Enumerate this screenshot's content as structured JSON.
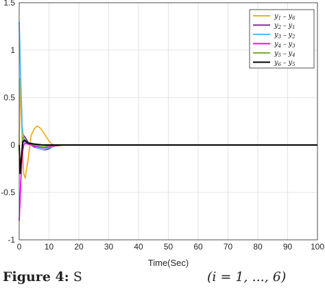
{
  "chart_data": {
    "type": "line",
    "xlabel": "Time(Sec)",
    "ylabel": "",
    "xlim": [
      0,
      100
    ],
    "ylim": [
      -1,
      1.5
    ],
    "xticks": [
      0,
      10,
      20,
      30,
      40,
      50,
      60,
      70,
      80,
      90,
      100
    ],
    "yticks": [
      -1,
      -0.5,
      0,
      0.5,
      1,
      1.5
    ],
    "grid": true,
    "legend_position": "top-right",
    "series": [
      {
        "name": "y1 − y6",
        "color": "#EDB120",
        "points": [
          [
            0,
            0
          ],
          [
            0.3,
            0.7
          ],
          [
            0.6,
            0.4
          ],
          [
            1,
            0.05
          ],
          [
            1.5,
            -0.3
          ],
          [
            2,
            -0.35
          ],
          [
            3,
            -0.15
          ],
          [
            4,
            0.1
          ],
          [
            5,
            0.17
          ],
          [
            6,
            0.2
          ],
          [
            7,
            0.18
          ],
          [
            8,
            0.14
          ],
          [
            9,
            0.09
          ],
          [
            10,
            0.04
          ],
          [
            11,
            0.01
          ],
          [
            12,
            -0.01
          ],
          [
            13,
            -0.01
          ],
          [
            15,
            0
          ],
          [
            20,
            0
          ],
          [
            100,
            0
          ]
        ]
      },
      {
        "name": "y2 − y1",
        "color": "#7E2F8E",
        "points": [
          [
            0,
            0
          ],
          [
            0.3,
            -0.25
          ],
          [
            0.7,
            -0.3
          ],
          [
            1,
            -0.05
          ],
          [
            1.5,
            0.1
          ],
          [
            2,
            0.08
          ],
          [
            3,
            0.03
          ],
          [
            4,
            0.0
          ],
          [
            5,
            -0.02
          ],
          [
            6,
            -0.03
          ],
          [
            7,
            -0.04
          ],
          [
            8,
            -0.05
          ],
          [
            9,
            -0.05
          ],
          [
            10,
            -0.04
          ],
          [
            11,
            -0.02
          ],
          [
            12,
            -0.01
          ],
          [
            14,
            0
          ],
          [
            20,
            0
          ],
          [
            100,
            0
          ]
        ]
      },
      {
        "name": "y3 − y2",
        "color": "#4DBEEE",
        "points": [
          [
            0,
            1.3
          ],
          [
            0.5,
            0.7
          ],
          [
            1,
            0.2
          ],
          [
            1.5,
            0.06
          ],
          [
            2,
            0.02
          ],
          [
            3,
            0.03
          ],
          [
            4,
            0.02
          ],
          [
            6,
            -0.03
          ],
          [
            8,
            -0.05
          ],
          [
            10,
            -0.03
          ],
          [
            12,
            -0.01
          ],
          [
            14,
            0
          ],
          [
            20,
            0
          ],
          [
            100,
            0
          ]
        ]
      },
      {
        "name": "y4 − y3",
        "color": "#FF00FF",
        "points": [
          [
            0,
            -0.8
          ],
          [
            0.5,
            -0.4
          ],
          [
            1,
            -0.1
          ],
          [
            1.5,
            0.0
          ],
          [
            2,
            0.02
          ],
          [
            3,
            0.01
          ],
          [
            5,
            -0.01
          ],
          [
            8,
            -0.03
          ],
          [
            10,
            -0.02
          ],
          [
            12,
            -0.01
          ],
          [
            14,
            0
          ],
          [
            20,
            0
          ],
          [
            100,
            0
          ]
        ]
      },
      {
        "name": "y5 − y4",
        "color": "#77AC30",
        "points": [
          [
            0,
            0
          ],
          [
            0.4,
            -0.3
          ],
          [
            0.8,
            -0.1
          ],
          [
            1.2,
            0.08
          ],
          [
            2,
            0.05
          ],
          [
            3,
            0.02
          ],
          [
            5,
            0.0
          ],
          [
            8,
            -0.02
          ],
          [
            10,
            -0.01
          ],
          [
            14,
            0
          ],
          [
            20,
            0
          ],
          [
            100,
            0
          ]
        ]
      },
      {
        "name": "y6 − y5",
        "color": "#000000",
        "points": [
          [
            0,
            0
          ],
          [
            0.3,
            -0.3
          ],
          [
            0.8,
            -0.12
          ],
          [
            1.2,
            0.03
          ],
          [
            1.8,
            0.05
          ],
          [
            3,
            0.02
          ],
          [
            5,
            0.01
          ],
          [
            8,
            0.0
          ],
          [
            12,
            0
          ],
          [
            20,
            0
          ],
          [
            100,
            0
          ]
        ]
      }
    ]
  },
  "legend_items": [
    {
      "base1": "y",
      "sub1": "1",
      "base2": "y",
      "sub2": "6"
    },
    {
      "base1": "y",
      "sub1": "2",
      "base2": "y",
      "sub2": "1"
    },
    {
      "base1": "y",
      "sub1": "3",
      "base2": "y",
      "sub2": "2"
    },
    {
      "base1": "y",
      "sub1": "4",
      "base2": "y",
      "sub2": "3"
    },
    {
      "base1": "y",
      "sub1": "5",
      "base2": "y",
      "sub2": "4"
    },
    {
      "base1": "y",
      "sub1": "6",
      "base2": "y",
      "sub2": "5"
    }
  ],
  "caption": {
    "label": "Figure 4:",
    "text": "S",
    "tail": "(i = 1, ..., 6)"
  }
}
